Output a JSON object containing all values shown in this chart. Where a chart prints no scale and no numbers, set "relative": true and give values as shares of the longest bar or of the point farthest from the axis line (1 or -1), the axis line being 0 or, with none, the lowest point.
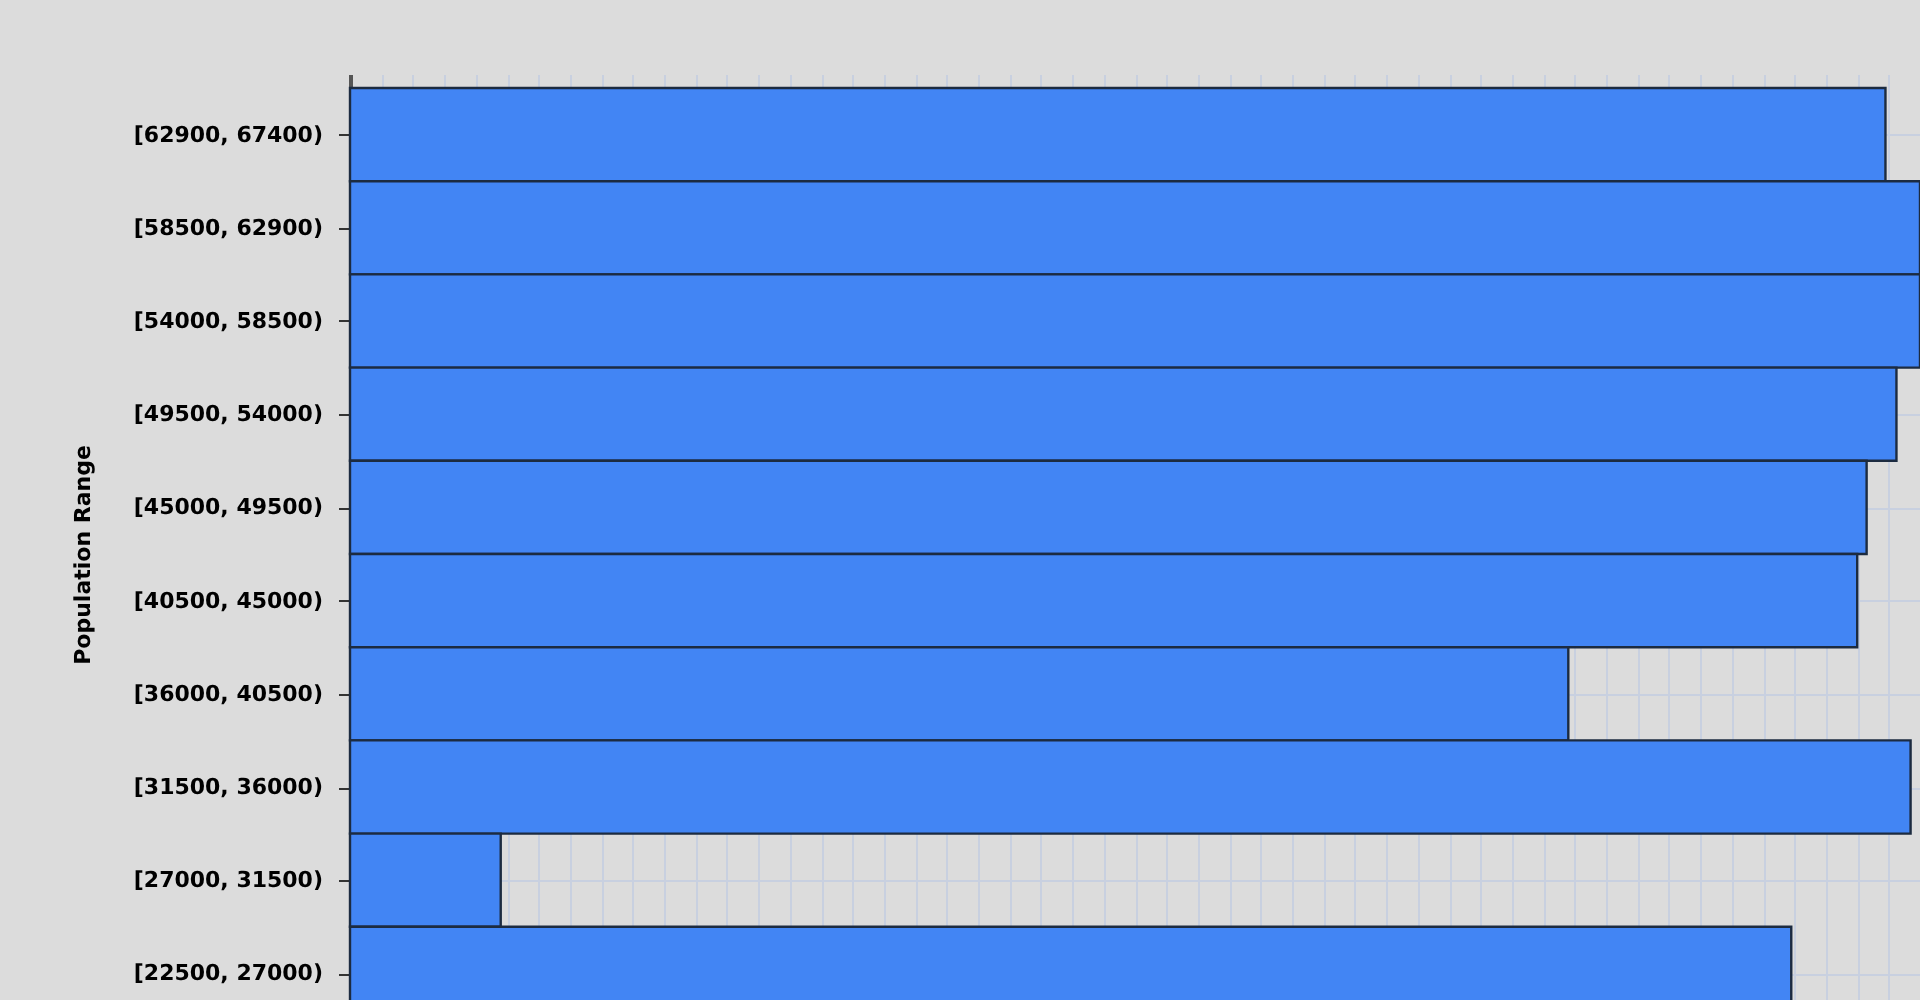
{
  "chart_data": {
    "type": "bar",
    "orientation": "horizontal",
    "relative": true,
    "ylabel": "Population Range",
    "categories": [
      "[62900, 67400)",
      "[58500, 62900)",
      "[54000, 58500)",
      "[49500, 54000)",
      "[45000, 49500)",
      "[40500, 45000)",
      "[36000, 40500)",
      "[31500, 36000)",
      "[27000, 31500)",
      "[22500, 27000)"
    ],
    "values": [
      0.978,
      1,
      1,
      0.985,
      0.966,
      0.96,
      0.776,
      0.994,
      0.096,
      0.918
    ],
    "color": "#4285f4",
    "grid": true
  }
}
